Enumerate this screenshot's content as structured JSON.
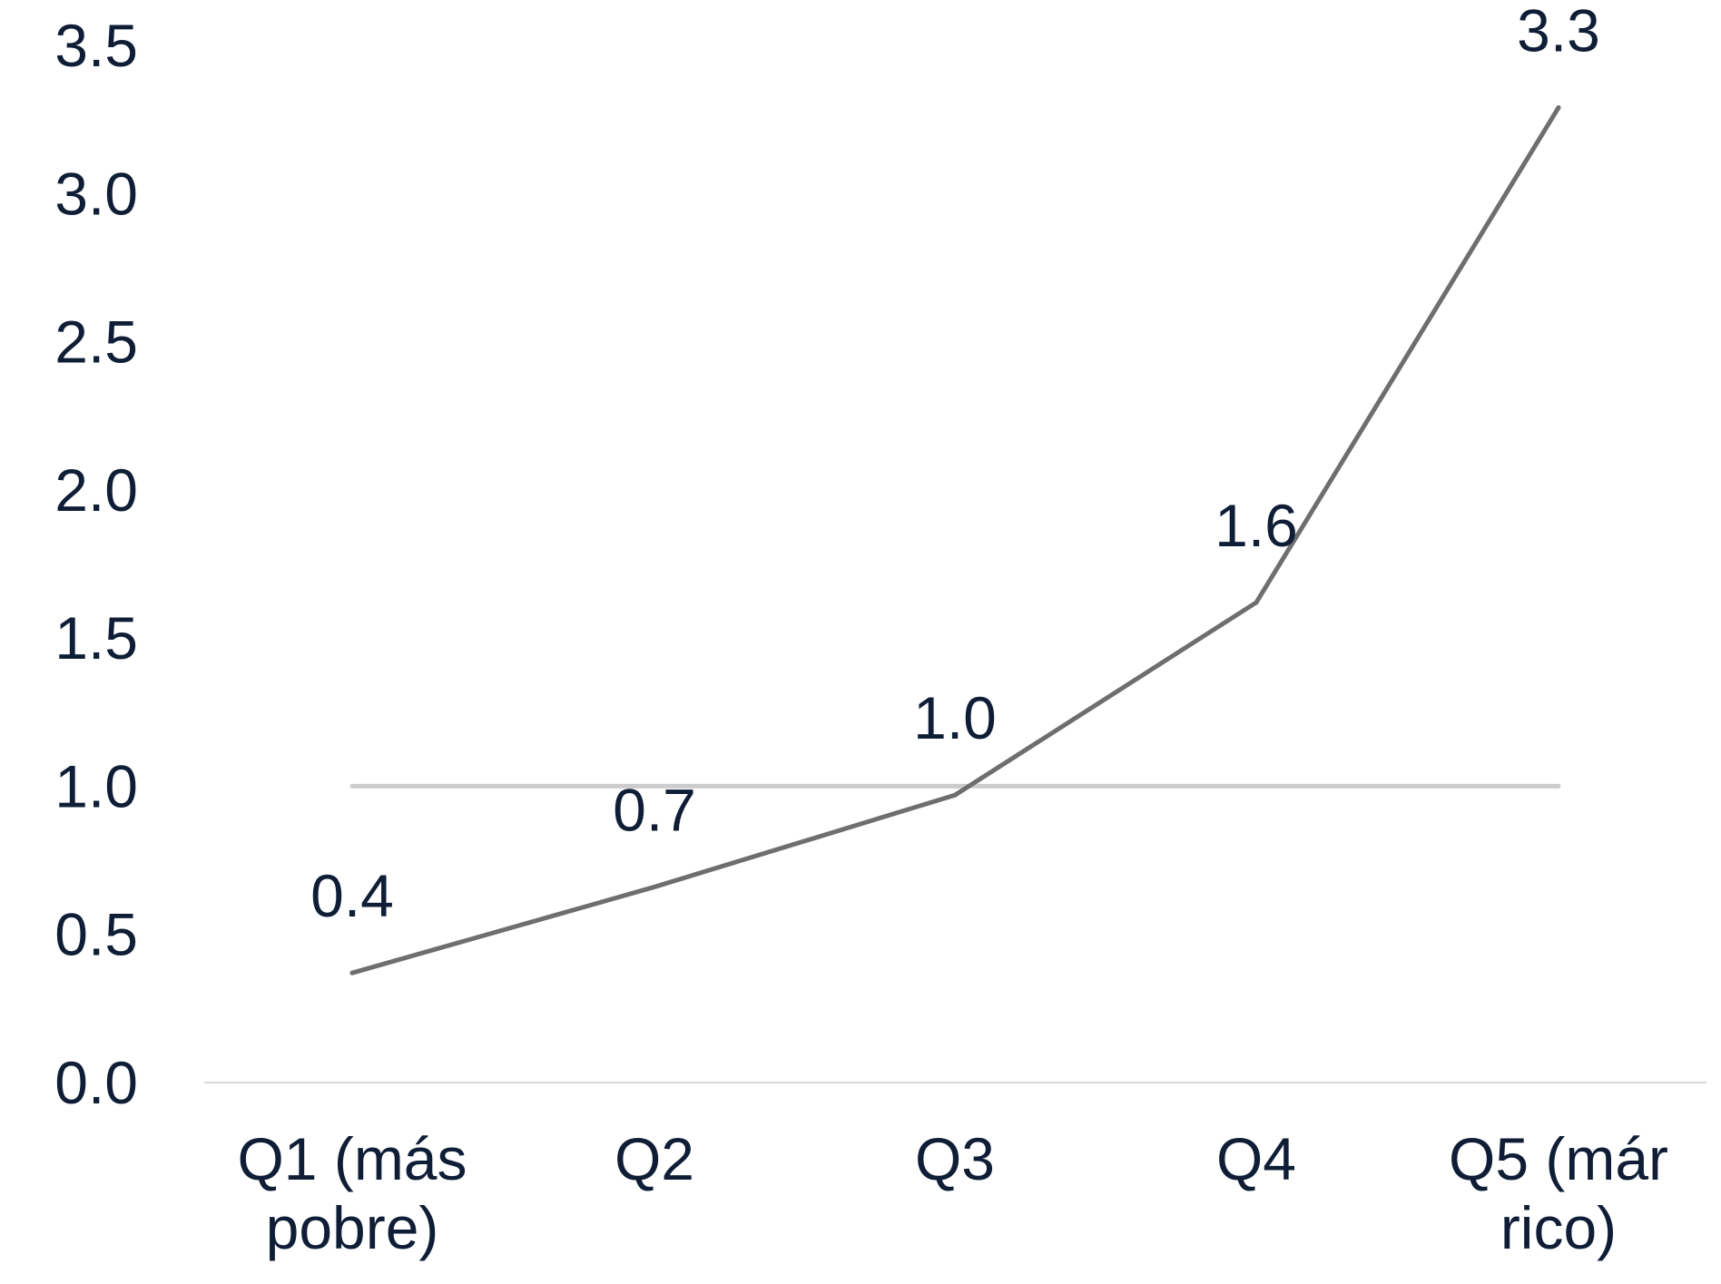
{
  "chart_data": {
    "type": "line",
    "categories": [
      [
        "Q1 (más",
        "pobre)"
      ],
      [
        "Q2"
      ],
      [
        "Q3"
      ],
      [
        "Q4"
      ],
      [
        "Q5 (már",
        "rico)"
      ]
    ],
    "series": [
      {
        "values": [
          0.37,
          0.66,
          0.97,
          1.62,
          3.29
        ],
        "labels": [
          "0.4",
          "0.7",
          "1.0",
          "1.6",
          "3.3"
        ],
        "color": "#6f6d6d"
      }
    ],
    "reference_line": {
      "value": 1.0,
      "color": "#cccccc"
    },
    "ylim": [
      0,
      3.5
    ],
    "yticks": [
      "0.0",
      "0.5",
      "1.0",
      "1.5",
      "2.0",
      "2.5",
      "3.0",
      "3.5"
    ],
    "ytick_values": [
      0,
      0.5,
      1.0,
      1.5,
      2.0,
      2.5,
      3.0,
      3.5
    ],
    "grid": false,
    "axis_color": "#d9d9d9",
    "text_color": "#0f1e36"
  }
}
